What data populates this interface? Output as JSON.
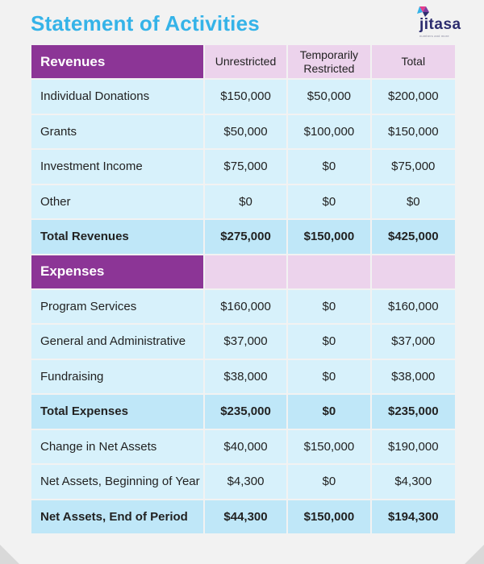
{
  "title": "Statement of Activities",
  "logo": {
    "word": "jitasa",
    "tagline": "numbers and more"
  },
  "colors": {
    "title": "#35b3e8",
    "section": "#8c3596",
    "header": "#ecd3ec",
    "cell": "#d7f1fb",
    "total": "#bfe7f8"
  },
  "columns": [
    "Unrestricted",
    "Temporarily Restricted",
    "Total"
  ],
  "revenues": {
    "heading": "Revenues",
    "rows": [
      {
        "label": "Individual Donations",
        "unrestricted": "$150,000",
        "temp": "$50,000",
        "total": "$200,000"
      },
      {
        "label": "Grants",
        "unrestricted": "$50,000",
        "temp": "$100,000",
        "total": "$150,000"
      },
      {
        "label": "Investment Income",
        "unrestricted": "$75,000",
        "temp": "$0",
        "total": "$75,000"
      },
      {
        "label": "Other",
        "unrestricted": "$0",
        "temp": "$0",
        "total": "$0"
      }
    ],
    "total": {
      "label": "Total Revenues",
      "unrestricted": "$275,000",
      "temp": "$150,000",
      "total": "$425,000"
    }
  },
  "expenses": {
    "heading": "Expenses",
    "rows": [
      {
        "label": "Program Services",
        "unrestricted": "$160,000",
        "temp": "$0",
        "total": "$160,000"
      },
      {
        "label": "General and Administrative",
        "unrestricted": "$37,000",
        "temp": "$0",
        "total": "$37,000"
      },
      {
        "label": "Fundraising",
        "unrestricted": "$38,000",
        "temp": "$0",
        "total": "$38,000"
      }
    ],
    "total": {
      "label": "Total Expenses",
      "unrestricted": "$235,000",
      "temp": "$0",
      "total": "$235,000"
    }
  },
  "net": {
    "change": {
      "label": "Change in Net Assets",
      "unrestricted": "$40,000",
      "temp": "$150,000",
      "total": "$190,000"
    },
    "beginning": {
      "label": "Net Assets, Beginning of Year",
      "unrestricted": "$4,300",
      "temp": "$0",
      "total": "$4,300"
    },
    "end": {
      "label": "Net Assets, End of Period",
      "unrestricted": "$44,300",
      "temp": "$150,000",
      "total": "$194,300"
    }
  }
}
